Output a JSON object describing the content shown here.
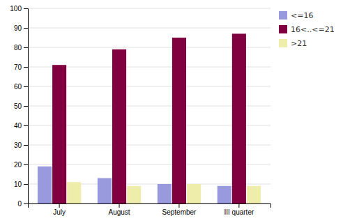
{
  "chart_data": {
    "type": "bar",
    "categories": [
      "July",
      "August",
      "September",
      "III quarter"
    ],
    "series": [
      {
        "name": "<=16",
        "color": "#9999dd",
        "values": [
          19,
          13,
          10,
          9
        ]
      },
      {
        "name": "16<..<=21",
        "color": "#800040",
        "values": [
          71,
          79,
          85,
          87
        ]
      },
      {
        "name": ">21",
        "color": "#eeeeaa",
        "values": [
          11,
          9,
          10,
          9
        ]
      }
    ],
    "ylim": [
      0,
      100
    ],
    "yticks": [
      0,
      10,
      20,
      30,
      40,
      50,
      60,
      70,
      80,
      90,
      100
    ],
    "grid": true,
    "legend": "right"
  }
}
